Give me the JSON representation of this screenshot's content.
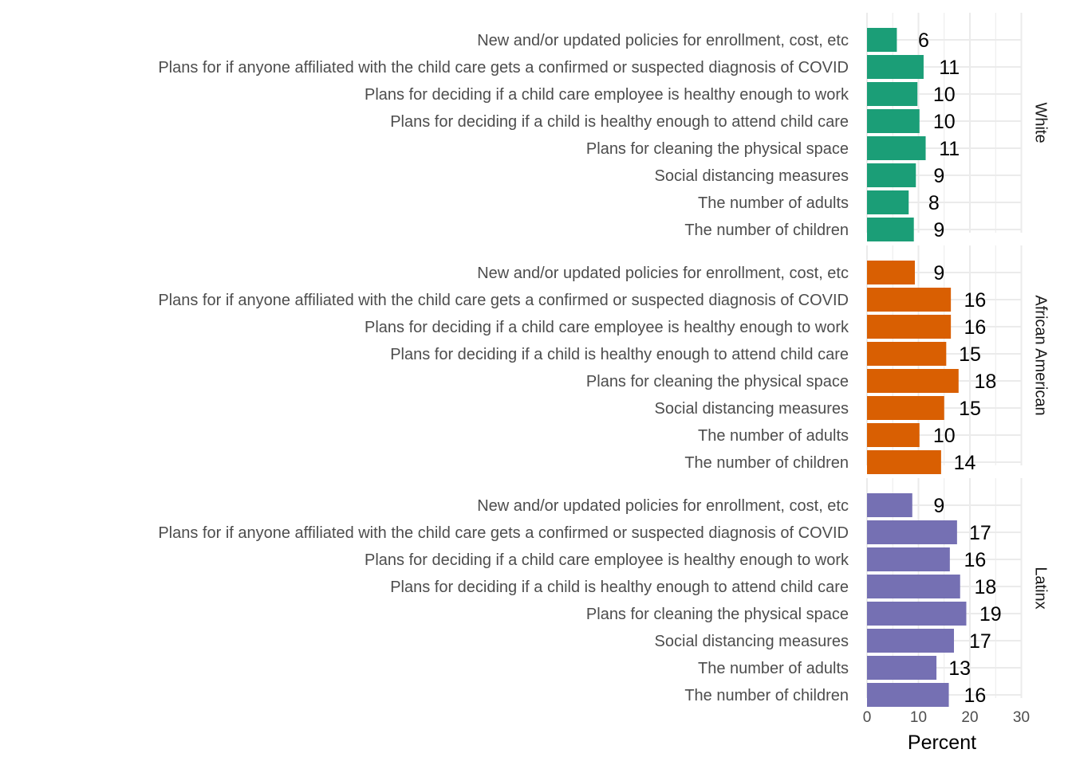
{
  "chart_data": {
    "type": "bar",
    "orientation": "horizontal",
    "facet_by": "group",
    "categories": [
      "New and/or updated policies for enrollment, cost, etc",
      "Plans for if anyone affiliated with the child care gets a confirmed or suspected diagnosis of COVID",
      "Plans for deciding if a child care employee is healthy enough to work",
      "Plans for deciding if a child is healthy enough to attend child care",
      "Plans for cleaning the physical space",
      "Social distancing measures",
      "The number of adults",
      "The number of children"
    ],
    "series": [
      {
        "name": "White",
        "color": "#1b9e77",
        "values": [
          6,
          11,
          10,
          10,
          11,
          9,
          8,
          9
        ],
        "raw_values": [
          5.8,
          11.0,
          9.8,
          10.2,
          11.4,
          9.5,
          8.1,
          9.1
        ]
      },
      {
        "name": "African American",
        "color": "#d95f02",
        "values": [
          9,
          16,
          16,
          15,
          18,
          15,
          10,
          14
        ],
        "raw_values": [
          9.3,
          16.3,
          16.3,
          15.4,
          17.8,
          15.0,
          10.2,
          14.4
        ]
      },
      {
        "name": "Latinx",
        "color": "#7570b3",
        "values": [
          9,
          17,
          16,
          18,
          19,
          17,
          13,
          16
        ],
        "raw_values": [
          8.8,
          17.5,
          16.1,
          18.1,
          19.3,
          16.9,
          13.5,
          15.9
        ]
      }
    ],
    "xlabel": "Percent",
    "ylabel": "",
    "xlim": [
      0,
      30
    ],
    "xticks": [
      0,
      10,
      20,
      30
    ],
    "grid": true,
    "legend": "none"
  }
}
